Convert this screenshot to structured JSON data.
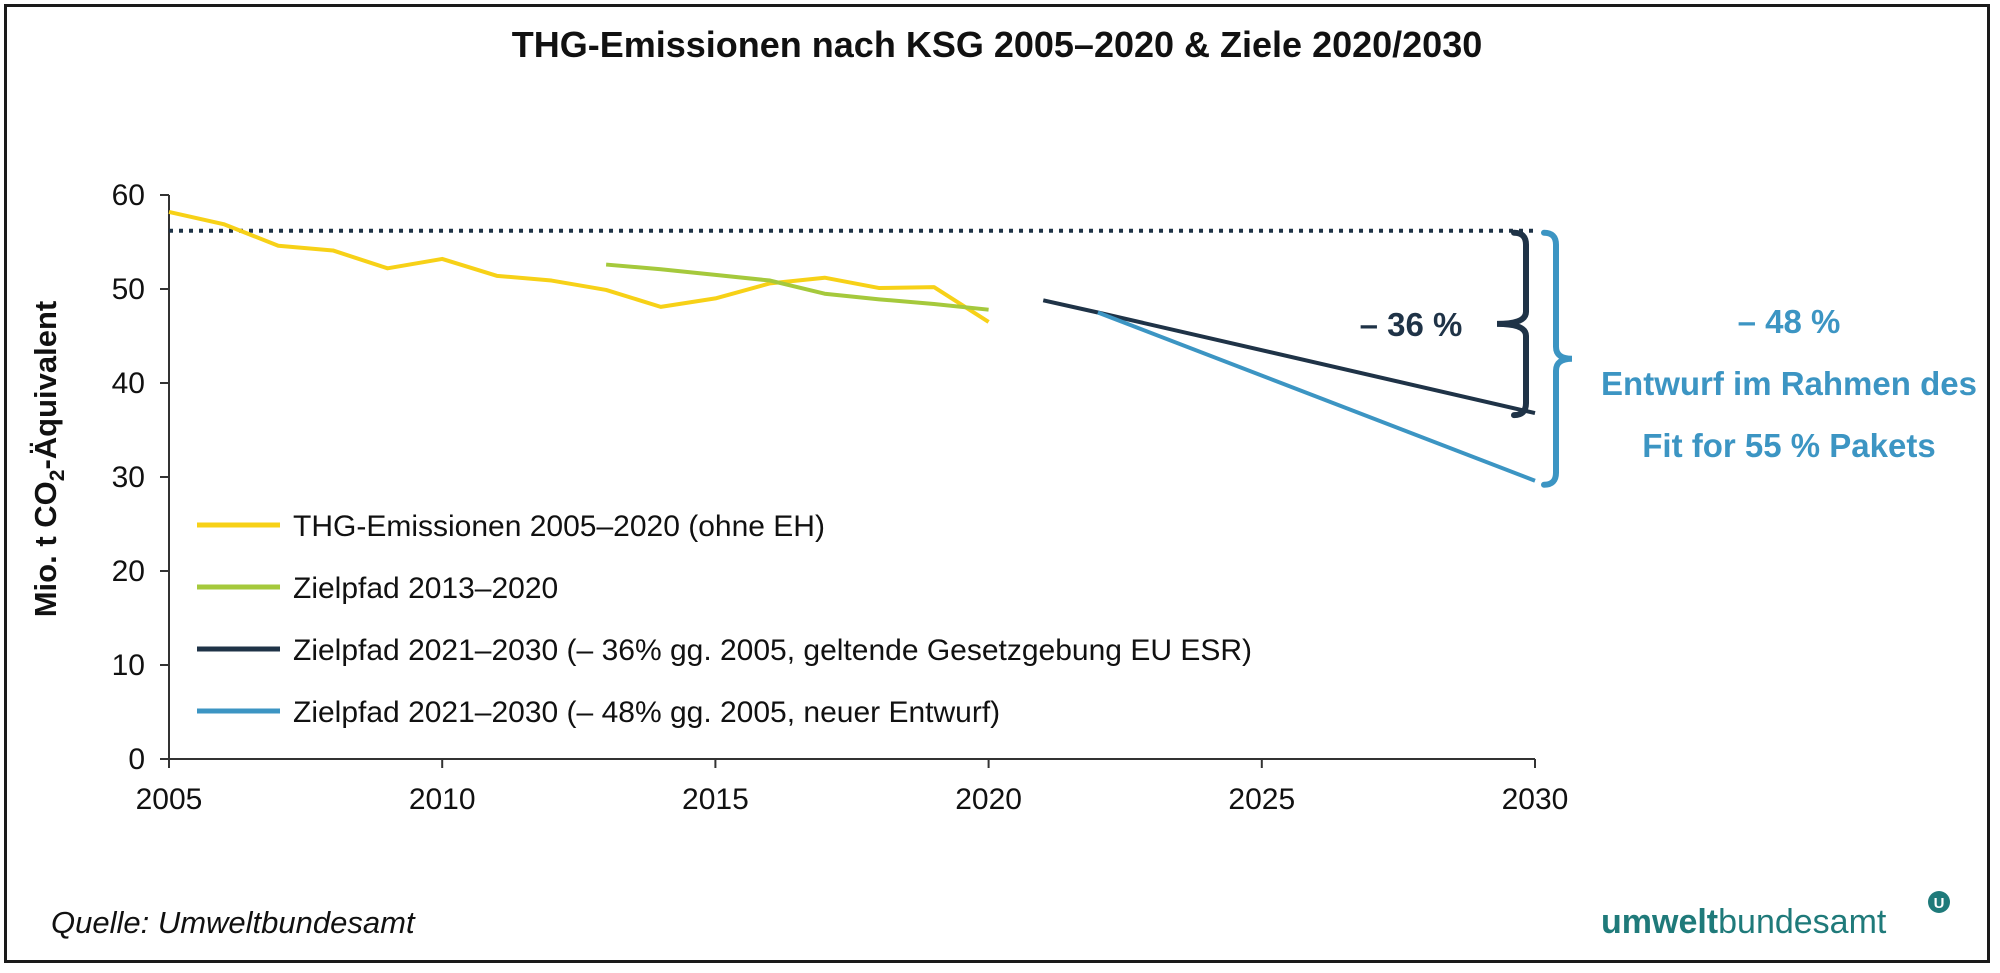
{
  "chart_data": {
    "type": "line",
    "title": "THG-Emissionen nach KSG 2005–2020 & Ziele 2020/2030",
    "ylabel": "Mio. t CO₂-Äquivalent",
    "ylabel_main": "Mio. t CO",
    "ylabel_sub": "2",
    "ylabel_rest": "-Äquivalent",
    "xlabel": "",
    "xlim": [
      2005,
      2030
    ],
    "ylim": [
      0,
      60
    ],
    "xticks": [
      "2005",
      "2010",
      "2015",
      "2020",
      "2025",
      "2030"
    ],
    "yticks": [
      "0",
      "10",
      "20",
      "30",
      "40",
      "50",
      "60"
    ],
    "grid": false,
    "legend_position": "bottom-left",
    "reference_line": {
      "y": 56.2,
      "from_x": 2005,
      "to_x": 2030,
      "style": "dotted",
      "color": "#1f3347"
    },
    "series": [
      {
        "name": "THG-Emissionen 2005–2020 (ohne EH)",
        "color": "#f7d117",
        "x": [
          2005,
          2006,
          2007,
          2008,
          2009,
          2010,
          2011,
          2012,
          2013,
          2014,
          2015,
          2016,
          2017,
          2018,
          2019,
          2020
        ],
        "y": [
          58.2,
          56.9,
          54.6,
          54.1,
          52.2,
          53.2,
          51.4,
          50.9,
          49.9,
          48.1,
          49.0,
          50.6,
          51.2,
          50.1,
          50.2,
          46.5
        ]
      },
      {
        "name": "Zielpfad 2013–2020",
        "color": "#a5c93c",
        "x": [
          2013,
          2014,
          2015,
          2016,
          2017,
          2018,
          2019,
          2020
        ],
        "y": [
          52.6,
          52.1,
          51.5,
          50.9,
          49.5,
          48.9,
          48.4,
          47.8
        ]
      },
      {
        "name": "Zielpfad 2021–2030 (– 36% gg. 2005, geltende Gesetzgebung EU ESR)",
        "color": "#1f3347",
        "x": [
          2021,
          2022,
          2030
        ],
        "y": [
          48.8,
          47.5,
          36.8
        ]
      },
      {
        "name": "Zielpfad 2021–2030 (– 48% gg. 2005, neuer Entwurf)",
        "color": "#3c95c3",
        "x": [
          2022,
          2030
        ],
        "y": [
          47.5,
          29.6
        ]
      }
    ],
    "annotations": {
      "dark_label": "– 36 %",
      "blue_lines": [
        "– 48 %",
        "Entwurf im Rahmen des",
        "Fit for 55 % Pakets"
      ]
    }
  },
  "footer": {
    "source": "Quelle: Umweltbundesamt",
    "logo_part1": "umwelt",
    "logo_part2": "bundesamt",
    "logo_mark": "U"
  },
  "colors": {
    "dark": "#1f3347",
    "blue": "#3c95c3",
    "logo_teal": "#1f7a7a"
  }
}
